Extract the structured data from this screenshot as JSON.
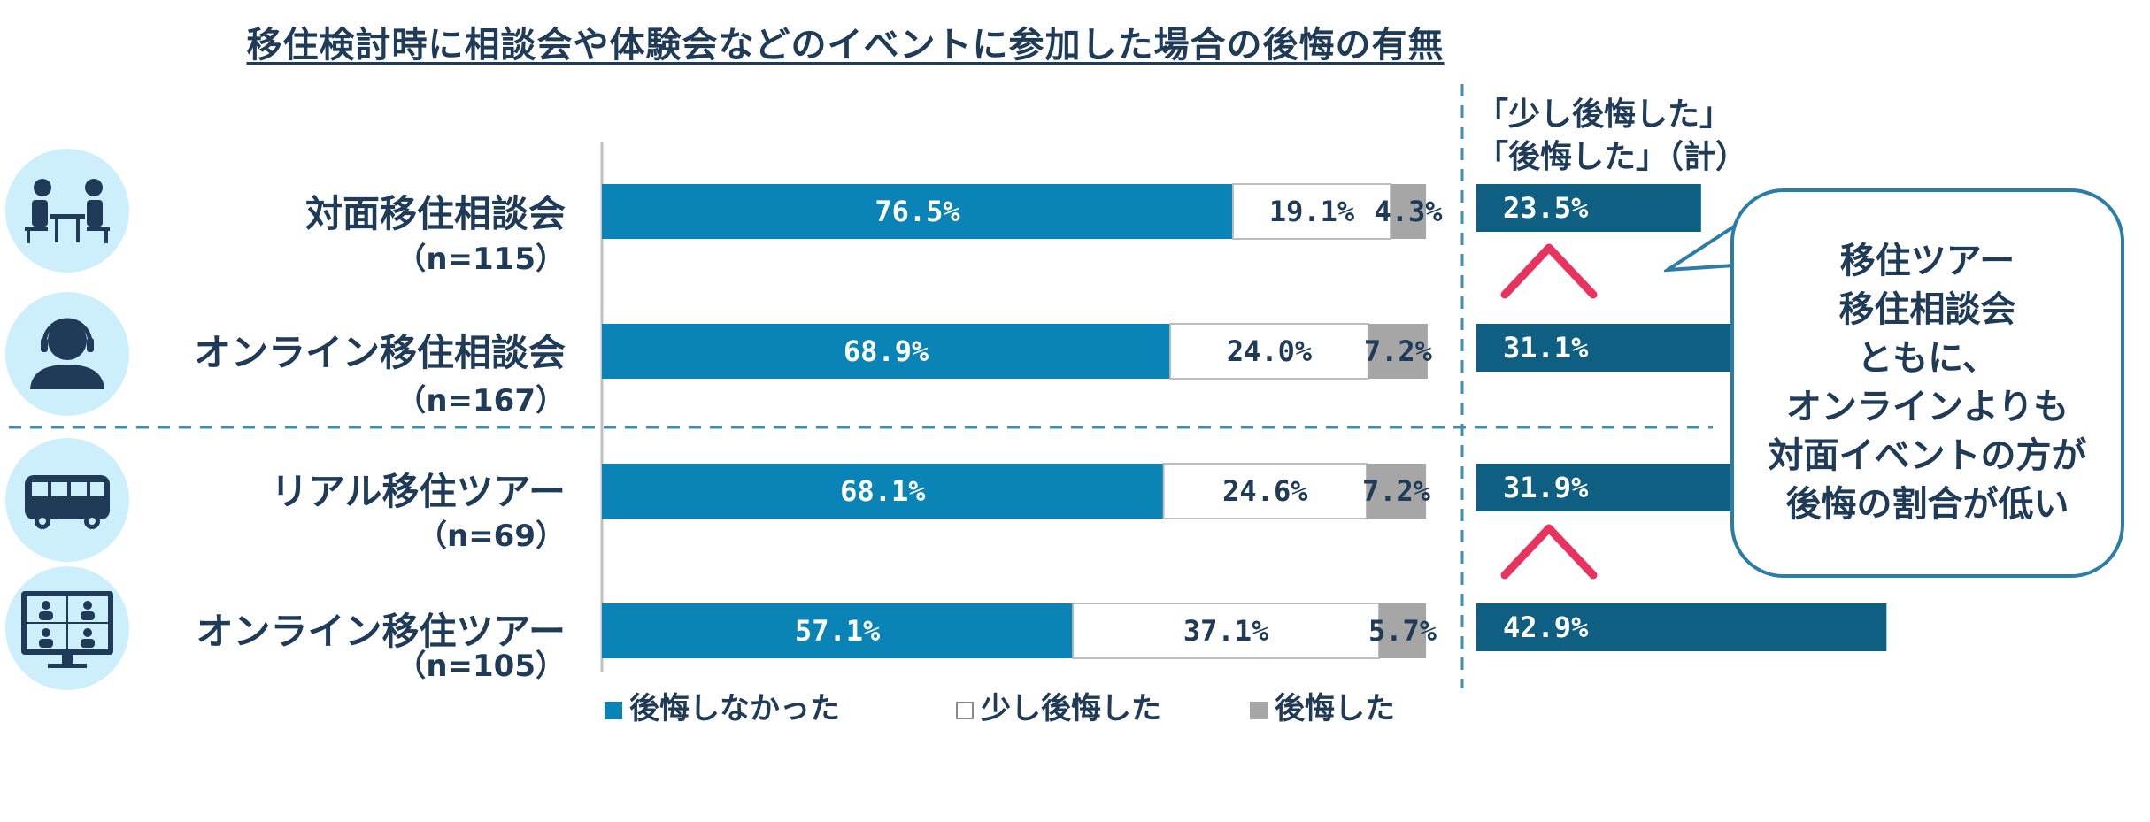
{
  "title": "移住検討時に相談会や体験会などのイベントに参加した場合の後悔の有無",
  "colors": {
    "no_regret": "#0a84b6",
    "slight_regret": "#ffffff",
    "regret": "#a6a6a6",
    "total": "#0f5f82",
    "arrow": "#e8335f",
    "text": "#1f3b57",
    "icon_bg": "#cdeefb"
  },
  "categories": [
    {
      "name": "対面移住相談会",
      "n": "（n=115）",
      "icon": "face-to-face-meeting-icon"
    },
    {
      "name": "オンライン移住相談会",
      "n": "（n=167）",
      "icon": "headset-operator-icon"
    },
    {
      "name": "リアル移住ツアー",
      "n": "（n=69）",
      "icon": "bus-icon"
    },
    {
      "name": "オンライン移住ツアー",
      "n": "（n=105）",
      "icon": "video-conference-monitor-icon"
    }
  ],
  "chart_data": [
    {
      "type": "bar",
      "orientation": "horizontal",
      "stacked": true,
      "normalized_percent": true,
      "title": "移住検討時に相談会や体験会などのイベントに参加した場合の後悔の有無",
      "categories": [
        "対面移住相談会",
        "オンライン移住相談会",
        "リアル移住ツアー",
        "オンライン移住ツアー"
      ],
      "series": [
        {
          "name": "後悔しなかった",
          "values": [
            76.5,
            68.9,
            68.1,
            57.1
          ],
          "labels": [
            "76.5%",
            "68.9%",
            "68.1%",
            "57.1%"
          ]
        },
        {
          "name": "少し後悔した",
          "values": [
            19.1,
            24.0,
            24.6,
            37.1
          ],
          "labels": [
            "19.1%",
            "24.0%",
            "24.6%",
            "37.1%"
          ]
        },
        {
          "name": "後悔した",
          "values": [
            4.3,
            7.2,
            7.2,
            5.7
          ],
          "labels": [
            "4.3%",
            "7.2%",
            "7.2%",
            "5.7%"
          ]
        }
      ],
      "legend": [
        "後悔しなかった",
        "少し後悔した",
        "後悔した"
      ],
      "legend_position": "bottom",
      "xlim": [
        0,
        100
      ]
    },
    {
      "type": "bar",
      "orientation": "horizontal",
      "title": "「少し後悔した」「後悔した」（計）",
      "categories": [
        "対面移住相談会",
        "オンライン移住相談会",
        "リアル移住ツアー",
        "オンライン移住ツアー"
      ],
      "values": [
        23.5,
        31.1,
        31.9,
        42.9
      ],
      "labels": [
        "23.5%",
        "31.1%",
        "31.9%",
        "42.9%"
      ],
      "xlim": [
        0,
        100
      ]
    }
  ],
  "totals_header": {
    "line1": "「少し後悔した」",
    "line2": "「後悔した」（計）"
  },
  "callout": {
    "lines": [
      "移住ツアー",
      "移住相談会",
      "ともに、",
      "オンラインよりも",
      "対面イベントの方が",
      "後悔の割合が低い"
    ]
  }
}
